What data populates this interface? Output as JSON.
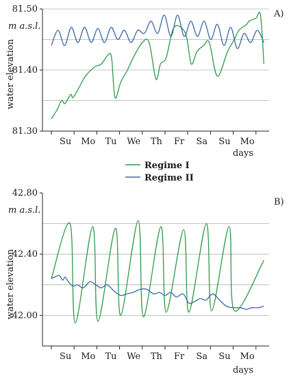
{
  "colors": {
    "regime1": "#2e9a4a",
    "regime2": "#3a68a8",
    "grid": "#b0b0b0",
    "axis": "#222222"
  },
  "legend": [
    {
      "name": "Regime I",
      "color": "#2e9a4a"
    },
    {
      "name": "Regime II",
      "color": "#3a68a8"
    }
  ],
  "chart_data": [
    {
      "type": "line",
      "panel_label": "A)",
      "unit_label": "m  a.s.l.",
      "ylabel": "water elevation",
      "xlabel": "days",
      "categories": [
        "Su",
        "Mo",
        "Tu",
        "We",
        "Th",
        "Fr",
        "Sa",
        "Su",
        "Mo"
      ],
      "xlim": [
        0,
        9
      ],
      "ylim": [
        81.3,
        81.5
      ],
      "yticks": [
        {
          "value": 81.3,
          "label": "81.30"
        },
        {
          "value": 81.4,
          "label": "81.40"
        },
        {
          "value": 81.5,
          "label": "81.50"
        }
      ],
      "gridlines": [
        81.35,
        81.4,
        81.45,
        81.5
      ],
      "grid": true,
      "series": [
        {
          "name": "Regime I",
          "x": [
            0,
            0.25,
            0.45,
            0.6,
            0.85,
            0.95,
            1.2,
            1.5,
            1.9,
            2.2,
            2.5,
            2.65,
            2.8,
            3.05,
            3.35,
            3.6,
            4.0,
            4.3,
            4.6,
            4.8,
            5.05,
            5.4,
            5.9,
            6.15,
            6.4,
            6.7,
            6.95,
            7.3,
            7.75,
            8.05,
            8.25,
            8.6,
            8.7,
            9.0,
            9.2,
            9.35
          ],
          "values": [
            81.32,
            81.335,
            81.35,
            81.345,
            81.36,
            81.355,
            81.37,
            81.39,
            81.405,
            81.41,
            81.425,
            81.42,
            81.355,
            81.38,
            81.4,
            81.42,
            81.445,
            81.445,
            81.385,
            81.41,
            81.42,
            81.47,
            81.46,
            81.41,
            81.43,
            81.44,
            81.445,
            81.39,
            81.43,
            81.45,
            81.465,
            81.475,
            81.48,
            81.485,
            81.49,
            81.41
          ]
        },
        {
          "name": "Regime II",
          "peaks": [
            81.465,
            81.47,
            81.47,
            81.468,
            81.47,
            81.465,
            81.465,
            81.48,
            81.49,
            81.49,
            81.48,
            81.48,
            81.475,
            81.47,
            81.46,
            81.465
          ],
          "troughs": [
            81.44,
            81.44,
            81.445,
            81.445,
            81.445,
            81.45,
            81.445,
            81.46,
            81.46,
            81.455,
            81.455,
            81.455,
            81.45,
            81.44,
            81.435,
            81.445
          ]
        }
      ]
    },
    {
      "type": "line",
      "panel_label": "B)",
      "unit_label": "m  a.s.l.",
      "ylabel": "water elevation",
      "xlabel": "days",
      "categories": [
        "Su",
        "Mo",
        "Tu",
        "We",
        "Th",
        "Fr",
        "Sa",
        "Su",
        "Mo"
      ],
      "xlim": [
        0,
        9
      ],
      "ylim": [
        41.8,
        42.8
      ],
      "yticks": [
        {
          "value": 42.0,
          "label": "42.00"
        },
        {
          "value": 42.4,
          "label": "42.40"
        },
        {
          "value": 42.8,
          "label": "42.80"
        }
      ],
      "gridlines": [
        42.0,
        42.2,
        42.4,
        42.6
      ],
      "grid": true,
      "series": [
        {
          "name": "Regime I",
          "peaks": [
            42.6,
            42.58,
            42.57,
            42.62,
            42.58,
            42.56,
            42.6,
            42.58
          ],
          "troughs": [
            42.24,
            41.95,
            41.96,
            42.0,
            41.99,
            42.02,
            42.02,
            42.03,
            42.03
          ],
          "end_value": 42.36
        },
        {
          "name": "Regime II",
          "x": [
            0,
            0.15,
            0.35,
            0.5,
            0.6,
            0.75,
            0.95,
            1.15,
            1.4,
            1.7,
            1.95,
            2.2,
            2.45,
            2.75,
            3.05,
            3.3,
            3.6,
            3.9,
            4.2,
            4.5,
            4.75,
            5.0,
            5.25,
            5.5,
            5.8,
            6.05,
            6.3,
            6.55,
            6.8,
            7.1,
            7.4,
            7.7,
            8.0,
            8.3,
            8.6,
            8.8,
            9.1,
            9.35
          ],
          "values": [
            42.24,
            42.25,
            42.26,
            42.23,
            42.25,
            42.22,
            42.19,
            42.2,
            42.18,
            42.22,
            42.2,
            42.18,
            42.2,
            42.16,
            42.13,
            42.14,
            42.15,
            42.17,
            42.17,
            42.14,
            42.15,
            42.13,
            42.15,
            42.12,
            42.14,
            42.08,
            42.09,
            42.11,
            42.1,
            42.14,
            42.1,
            42.06,
            42.05,
            42.05,
            42.04,
            42.05,
            42.05,
            42.06
          ]
        }
      ]
    }
  ]
}
